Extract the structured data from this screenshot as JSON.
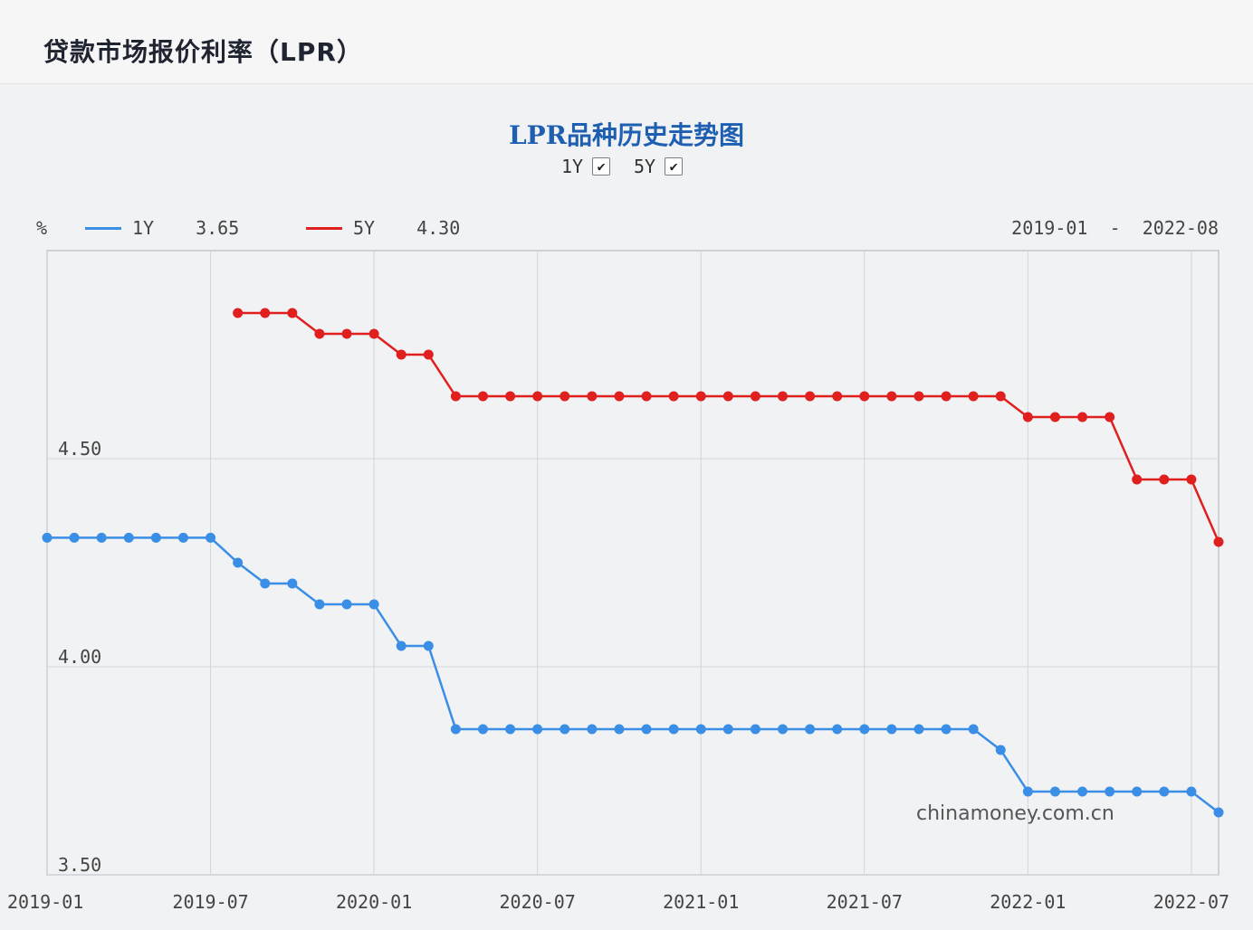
{
  "page": {
    "title": "贷款市场报价利率（LPR）"
  },
  "chart_title": "LPR品种历史走势图",
  "toggles": [
    {
      "label": "1Y",
      "checked": true,
      "mark": "✔"
    },
    {
      "label": "5Y",
      "checked": true,
      "mark": "✔"
    }
  ],
  "legend": {
    "unit": "%",
    "items": [
      {
        "name": "1Y",
        "value": "3.65",
        "color": "#3a8ee6"
      },
      {
        "name": "5Y",
        "value": "4.30",
        "color": "#e01f1f"
      }
    ],
    "range_start": "2019-01",
    "range_sep": "-",
    "range_end": "2022-08"
  },
  "watermark": "chinamoney.com.cn",
  "chart_data": {
    "type": "line",
    "x": [
      "2019-01",
      "2019-02",
      "2019-03",
      "2019-04",
      "2019-05",
      "2019-06",
      "2019-07",
      "2019-08",
      "2019-09",
      "2019-10",
      "2019-11",
      "2019-12",
      "2020-01",
      "2020-02",
      "2020-03",
      "2020-04",
      "2020-05",
      "2020-06",
      "2020-07",
      "2020-08",
      "2020-09",
      "2020-10",
      "2020-11",
      "2020-12",
      "2021-01",
      "2021-02",
      "2021-03",
      "2021-04",
      "2021-05",
      "2021-06",
      "2021-07",
      "2021-08",
      "2021-09",
      "2021-10",
      "2021-11",
      "2021-12",
      "2022-01",
      "2022-02",
      "2022-03",
      "2022-04",
      "2022-05",
      "2022-06",
      "2022-07",
      "2022-08"
    ],
    "series": [
      {
        "name": "1Y",
        "color": "#3a8ee6",
        "values": [
          4.31,
          4.31,
          4.31,
          4.31,
          4.31,
          4.31,
          4.31,
          4.25,
          4.2,
          4.2,
          4.15,
          4.15,
          4.15,
          4.05,
          4.05,
          3.85,
          3.85,
          3.85,
          3.85,
          3.85,
          3.85,
          3.85,
          3.85,
          3.85,
          3.85,
          3.85,
          3.85,
          3.85,
          3.85,
          3.85,
          3.85,
          3.85,
          3.85,
          3.85,
          3.85,
          3.8,
          3.7,
          3.7,
          3.7,
          3.7,
          3.7,
          3.7,
          3.7,
          3.65
        ]
      },
      {
        "name": "5Y",
        "color": "#e01f1f",
        "values": [
          null,
          null,
          null,
          null,
          null,
          null,
          null,
          4.85,
          4.85,
          4.85,
          4.8,
          4.8,
          4.8,
          4.75,
          4.75,
          4.65,
          4.65,
          4.65,
          4.65,
          4.65,
          4.65,
          4.65,
          4.65,
          4.65,
          4.65,
          4.65,
          4.65,
          4.65,
          4.65,
          4.65,
          4.65,
          4.65,
          4.65,
          4.65,
          4.65,
          4.65,
          4.6,
          4.6,
          4.6,
          4.6,
          4.45,
          4.45,
          4.45,
          4.3
        ]
      }
    ],
    "xticks": [
      "2019-01",
      "2019-07",
      "2020-01",
      "2020-07",
      "2021-01",
      "2021-07",
      "2022-01",
      "2022-07"
    ],
    "yticks": [
      "3.50",
      "4.00",
      "4.50"
    ],
    "ylim": [
      3.5,
      5.0
    ],
    "grid": true
  }
}
